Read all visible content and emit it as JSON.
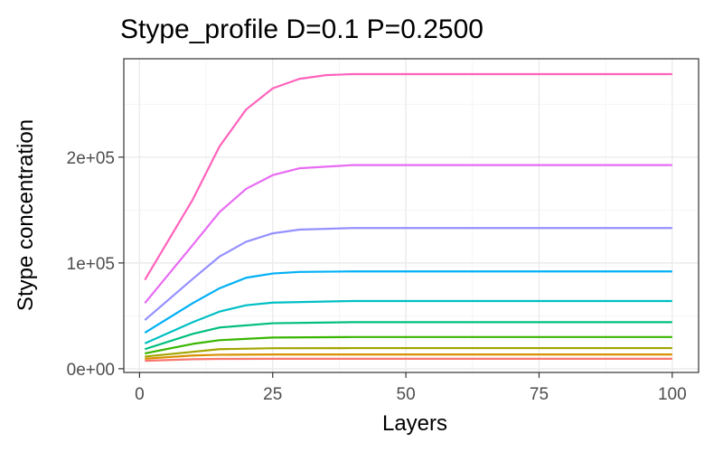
{
  "chart_data": {
    "type": "line",
    "title": "Stype_profile D=0.1 P=0.2500",
    "xlabel": "Layers",
    "ylabel": "Stype concentration",
    "xlim": [
      -2.95,
      104.95
    ],
    "ylim": [
      -3500,
      293000
    ],
    "x_ticks": [
      0,
      25,
      50,
      75,
      100
    ],
    "x_tick_labels": [
      "0",
      "25",
      "50",
      "75",
      "100"
    ],
    "y_ticks": [
      0,
      100000,
      200000
    ],
    "y_tick_labels": [
      "0e+00",
      "1e+05",
      "2e+05"
    ],
    "grid": true,
    "legend": "none",
    "series": [
      {
        "color": "#F8766D",
        "values": [
          [
            1,
            7500
          ],
          [
            10,
            9000
          ],
          [
            15,
            9300
          ],
          [
            25,
            9400
          ],
          [
            100,
            9400
          ]
        ]
      },
      {
        "color": "#D89000",
        "values": [
          [
            1,
            9500
          ],
          [
            10,
            12500
          ],
          [
            15,
            13200
          ],
          [
            25,
            13500
          ],
          [
            100,
            13500
          ]
        ]
      },
      {
        "color": "#A3A500",
        "values": [
          [
            1,
            11500
          ],
          [
            10,
            16000
          ],
          [
            15,
            18500
          ],
          [
            25,
            19400
          ],
          [
            40,
            19500
          ],
          [
            100,
            19500
          ]
        ]
      },
      {
        "color": "#39B600",
        "values": [
          [
            1,
            14500
          ],
          [
            10,
            23500
          ],
          [
            15,
            27000
          ],
          [
            25,
            29500
          ],
          [
            40,
            30000
          ],
          [
            100,
            30000
          ]
        ]
      },
      {
        "color": "#00BF7D",
        "values": [
          [
            1,
            18500
          ],
          [
            10,
            33000
          ],
          [
            15,
            39000
          ],
          [
            25,
            43000
          ],
          [
            40,
            44000
          ],
          [
            100,
            44000
          ]
        ]
      },
      {
        "color": "#00BFC4",
        "values": [
          [
            1,
            24000
          ],
          [
            10,
            44000
          ],
          [
            15,
            54000
          ],
          [
            20,
            60000
          ],
          [
            25,
            62500
          ],
          [
            40,
            64000
          ],
          [
            100,
            64000
          ]
        ]
      },
      {
        "color": "#00B0F6",
        "values": [
          [
            1,
            34000
          ],
          [
            10,
            62000
          ],
          [
            15,
            76000
          ],
          [
            20,
            86000
          ],
          [
            25,
            90000
          ],
          [
            30,
            91500
          ],
          [
            40,
            92000
          ],
          [
            100,
            92000
          ]
        ]
      },
      {
        "color": "#9590FF",
        "values": [
          [
            1,
            46000
          ],
          [
            10,
            85000
          ],
          [
            15,
            106000
          ],
          [
            20,
            120000
          ],
          [
            25,
            128000
          ],
          [
            30,
            131500
          ],
          [
            40,
            133000
          ],
          [
            100,
            133000
          ]
        ]
      },
      {
        "color": "#E76BF3",
        "values": [
          [
            1,
            62000
          ],
          [
            10,
            117000
          ],
          [
            15,
            148000
          ],
          [
            20,
            170000
          ],
          [
            25,
            183000
          ],
          [
            30,
            189500
          ],
          [
            40,
            192500
          ],
          [
            100,
            192500
          ]
        ]
      },
      {
        "color": "#FF62BC",
        "values": [
          [
            1,
            84000
          ],
          [
            10,
            160000
          ],
          [
            15,
            210000
          ],
          [
            20,
            245000
          ],
          [
            25,
            265000
          ],
          [
            30,
            274000
          ],
          [
            35,
            277500
          ],
          [
            40,
            278500
          ],
          [
            100,
            278500
          ]
        ]
      }
    ]
  }
}
